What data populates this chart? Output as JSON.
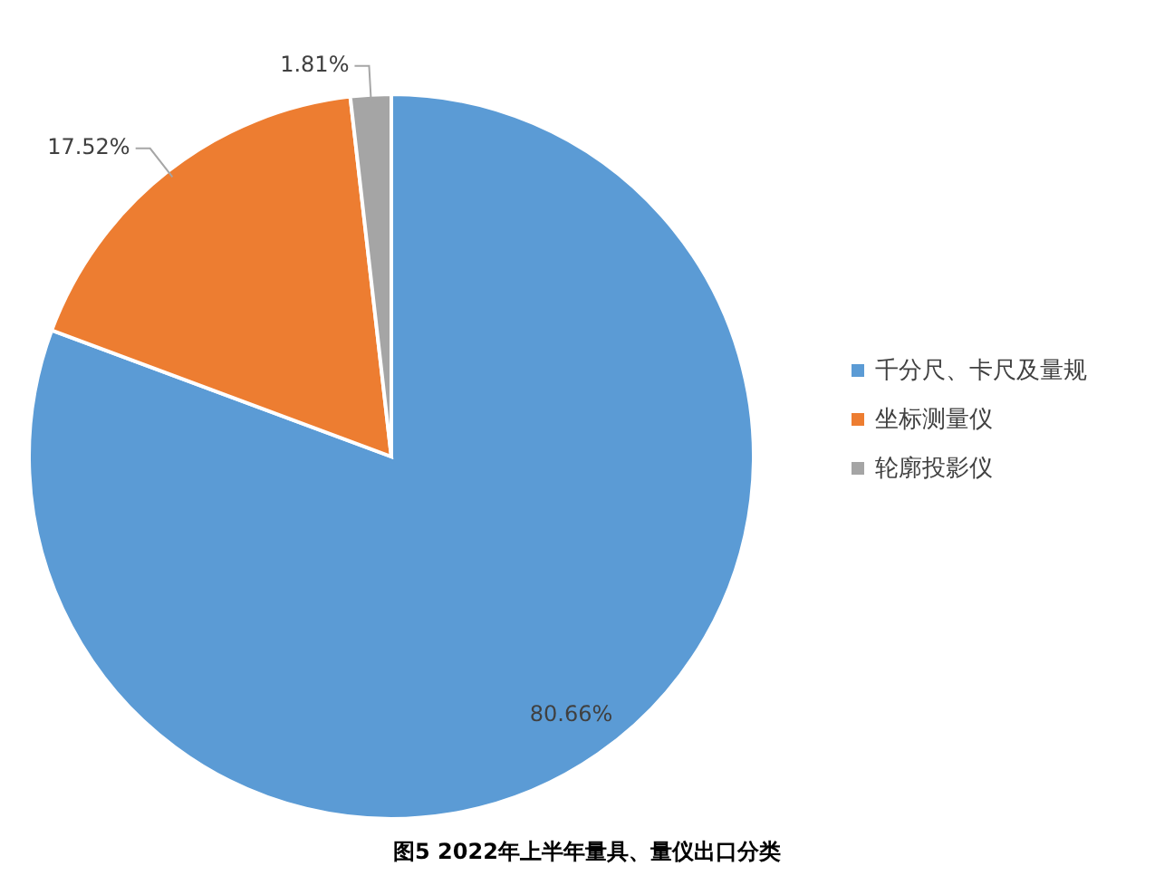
{
  "chart_data": {
    "type": "pie",
    "title": "图5 2022年上半年量具、量仪出口分类",
    "categories": [
      "千分尺、卡尺及量规",
      "坐标测量仪",
      "轮廓投影仪"
    ],
    "values": [
      80.66,
      17.52,
      1.81
    ],
    "colors": [
      "#5b9bd5",
      "#ed7d31",
      "#a5a5a5"
    ],
    "value_labels": [
      "80.66%",
      "17.52%",
      "1.81%"
    ],
    "legend": "right"
  }
}
